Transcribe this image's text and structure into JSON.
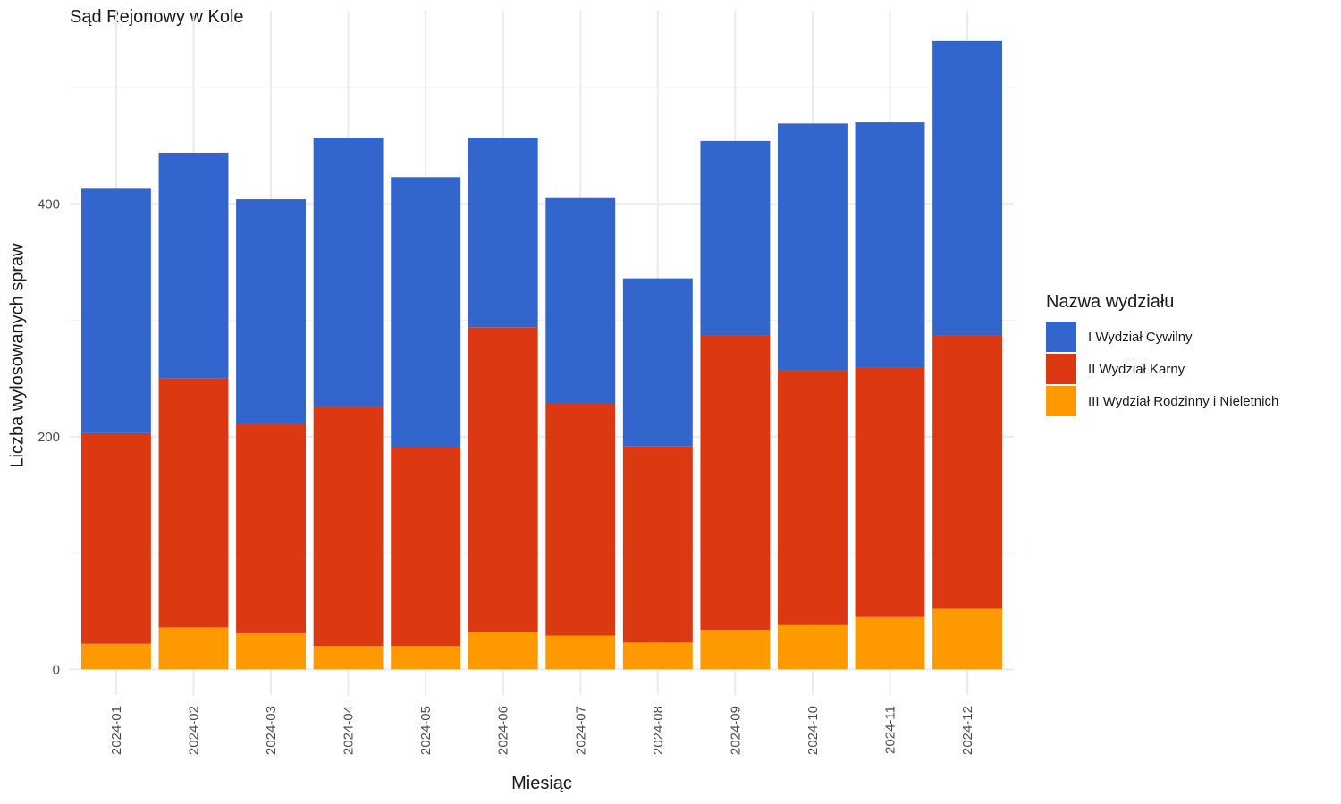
{
  "chart_data": {
    "type": "bar",
    "stacked": true,
    "title": "Sąd Rejonowy w Kole",
    "xlabel": "Miesiąc",
    "ylabel": "Liczba wylosowanych spraw",
    "categories": [
      "2024-01",
      "2024-02",
      "2024-03",
      "2024-04",
      "2024-05",
      "2024-06",
      "2024-07",
      "2024-08",
      "2024-09",
      "2024-10",
      "2024-11",
      "2024-12"
    ],
    "series": [
      {
        "name": "III Wydział Rodzinny i Nieletnich",
        "color": "#FF9900",
        "values": [
          22,
          36,
          31,
          20,
          20,
          32,
          29,
          23,
          34,
          38,
          45,
          52
        ]
      },
      {
        "name": "II Wydział Karny",
        "color": "#DC3912",
        "values": [
          181,
          214,
          180,
          206,
          171,
          262,
          200,
          169,
          253,
          219,
          214,
          235
        ]
      },
      {
        "name": "I Wydział Cywilny",
        "color": "#3366CC",
        "values": [
          210,
          194,
          193,
          231,
          232,
          163,
          176,
          144,
          167,
          212,
          211,
          253
        ]
      }
    ],
    "ylim": [
      -22,
      566
    ],
    "yticks": [
      0,
      200,
      400
    ],
    "grid": true,
    "legend": {
      "title": "Nazwa wydziału",
      "position": "right",
      "items": [
        "I Wydział Cywilny",
        "II Wydział Karny",
        "III Wydział Rodzinny i Nieletnich"
      ]
    }
  }
}
